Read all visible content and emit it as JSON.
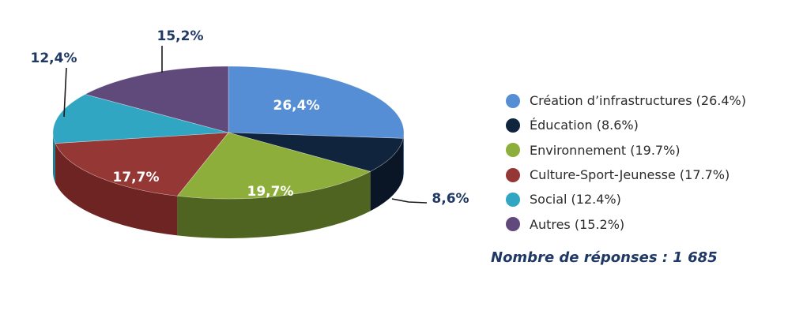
{
  "chart_data": {
    "type": "pie",
    "title": "",
    "slices": [
      {
        "category": "Création d’infrastructures",
        "value": 26.4,
        "label": "26,4%",
        "legend": "Création d’infrastructures (26.4%)",
        "color": "#558ED5",
        "side": "#3B6AA6"
      },
      {
        "category": "Éducation",
        "value": 8.6,
        "label": "8,6%",
        "legend": "Éducation (8.6%)",
        "color": "#10243E",
        "side": "#0A1626"
      },
      {
        "category": "Environnement",
        "value": 19.7,
        "label": "19,7%",
        "legend": "Environnement (19.7%)",
        "color": "#8EAE3C",
        "side": "#4F6420"
      },
      {
        "category": "Culture-Sport-Jeunesse",
        "value": 17.7,
        "label": "17,7%",
        "legend": "Culture-Sport-Jeunesse (17.7%)",
        "color": "#953735",
        "side": "#6E2422"
      },
      {
        "category": "Social",
        "value": 12.4,
        "label": "12,4%",
        "legend": "Social (12.4%)",
        "color": "#31A6C3",
        "side": "#1F7D94"
      },
      {
        "category": "Autres",
        "value": 15.2,
        "label": "15,2%",
        "legend": "Autres (15.2%)",
        "color": "#604A7B",
        "side": "#46355C"
      }
    ],
    "legend_position": "right"
  },
  "colors": {
    "legend_text": "#2B2B2B",
    "inside_label": "#FFFFFF",
    "outside_label": "#1F3864",
    "note": "#1F3864"
  },
  "note": {
    "text": "Nombre de réponses : 1 685"
  }
}
